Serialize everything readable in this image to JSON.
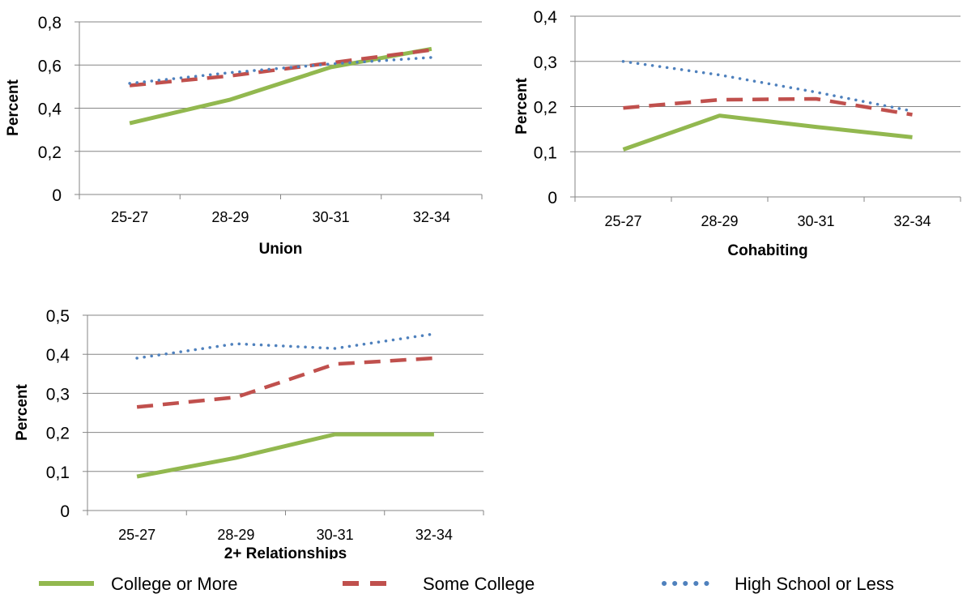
{
  "colors": {
    "college": "#92b84f",
    "some_college": "#c0504d",
    "high_school": "#4f81bd",
    "axis": "#868686",
    "grid": "#868686"
  },
  "legend": {
    "items": [
      {
        "name": "College or More",
        "style": "solid"
      },
      {
        "name": "Some College",
        "style": "dashed"
      },
      {
        "name": "High School or Less",
        "style": "dotted"
      }
    ]
  },
  "chart_data": [
    {
      "type": "line",
      "title": "",
      "xlabel": "Union",
      "ylabel": "Percent",
      "categories": [
        "25-27",
        "28-29",
        "30-31",
        "32-34"
      ],
      "ylim": [
        0,
        0.8
      ],
      "yticks": [
        "0",
        "0,2",
        "0,4",
        "0,6",
        "0,8"
      ],
      "ytick_values": [
        0,
        0.2,
        0.4,
        0.6,
        0.8
      ],
      "grid": true,
      "series": [
        {
          "name": "College or More",
          "values": [
            0.33,
            0.44,
            0.59,
            0.675
          ]
        },
        {
          "name": "Some College",
          "values": [
            0.505,
            0.55,
            0.61,
            0.67
          ]
        },
        {
          "name": "High School or Less",
          "values": [
            0.515,
            0.565,
            0.605,
            0.635
          ]
        }
      ]
    },
    {
      "type": "line",
      "title": "",
      "xlabel": "Cohabiting",
      "ylabel": "Percent",
      "categories": [
        "25-27",
        "28-29",
        "30-31",
        "32-34"
      ],
      "ylim": [
        0,
        0.4
      ],
      "yticks": [
        "0",
        "0,1",
        "0,2",
        "0,3",
        "0,4"
      ],
      "ytick_values": [
        0,
        0.1,
        0.2,
        0.3,
        0.4
      ],
      "grid": true,
      "series": [
        {
          "name": "College or More",
          "values": [
            0.105,
            0.18,
            0.155,
            0.132
          ]
        },
        {
          "name": "Some College",
          "values": [
            0.197,
            0.215,
            0.217,
            0.182
          ]
        },
        {
          "name": "High School or Less",
          "values": [
            0.3,
            0.27,
            0.232,
            0.19
          ]
        }
      ]
    },
    {
      "type": "line",
      "title": "",
      "xlabel": "2+ Relationships",
      "ylabel": "Percent",
      "categories": [
        "25-27",
        "28-29",
        "30-31",
        "32-34"
      ],
      "ylim": [
        0,
        0.5
      ],
      "yticks": [
        "0",
        "0,1",
        "0,2",
        "0,3",
        "0,4",
        "0,5"
      ],
      "ytick_values": [
        0,
        0.1,
        0.2,
        0.3,
        0.4,
        0.5
      ],
      "grid": true,
      "series": [
        {
          "name": "College or More",
          "values": [
            0.087,
            0.135,
            0.195,
            0.195
          ]
        },
        {
          "name": "Some College",
          "values": [
            0.265,
            0.29,
            0.375,
            0.39
          ]
        },
        {
          "name": "High School or Less",
          "values": [
            0.39,
            0.427,
            0.415,
            0.452
          ]
        }
      ]
    }
  ]
}
